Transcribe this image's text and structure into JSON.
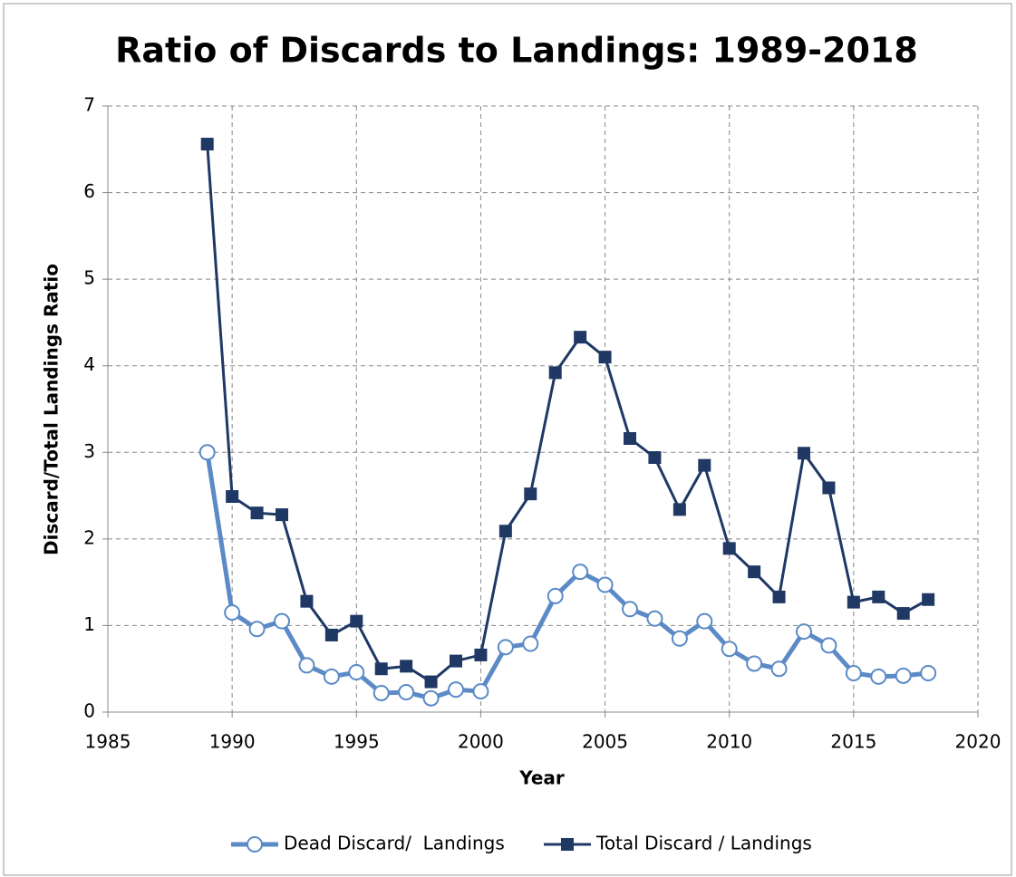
{
  "chart_data": {
    "type": "line",
    "title": "Ratio of Discards to Landings: 1989-2018",
    "x_label": "Year",
    "y_label": "Discard/Total Landings Ratio",
    "x": [
      1989,
      1990,
      1991,
      1992,
      1993,
      1994,
      1995,
      1996,
      1997,
      1998,
      1999,
      2000,
      2001,
      2002,
      2003,
      2004,
      2005,
      2006,
      2007,
      2008,
      2009,
      2010,
      2011,
      2012,
      2013,
      2014,
      2015,
      2016,
      2017,
      2018
    ],
    "series": [
      {
        "name": "Dead Discard/  Landings",
        "color": "#5b8ac6",
        "marker": "circle",
        "values": [
          3.0,
          1.15,
          0.96,
          1.05,
          0.54,
          0.41,
          0.46,
          0.22,
          0.23,
          0.16,
          0.26,
          0.24,
          0.75,
          0.79,
          1.34,
          1.62,
          1.47,
          1.19,
          1.08,
          0.85,
          1.05,
          0.73,
          0.56,
          0.5,
          0.93,
          0.77,
          0.45,
          0.41,
          0.42,
          0.45
        ]
      },
      {
        "name": "Total Discard / Landings",
        "color": "#1f3864",
        "marker": "square",
        "values": [
          6.56,
          2.49,
          2.3,
          2.28,
          1.28,
          0.89,
          1.05,
          0.5,
          0.53,
          0.35,
          0.59,
          0.66,
          2.09,
          2.52,
          3.92,
          4.33,
          4.1,
          3.16,
          2.94,
          2.34,
          2.85,
          1.89,
          1.62,
          1.33,
          2.99,
          2.59,
          1.27,
          1.33,
          1.14,
          1.3
        ]
      }
    ],
    "xlim": [
      1985,
      2020
    ],
    "xticks": [
      1985,
      1990,
      1995,
      2000,
      2005,
      2010,
      2015,
      2020
    ],
    "ylim": [
      0,
      7
    ],
    "yticks": [
      0,
      1,
      2,
      3,
      4,
      5,
      6,
      7
    ],
    "grid": true,
    "legend": "bottom"
  }
}
